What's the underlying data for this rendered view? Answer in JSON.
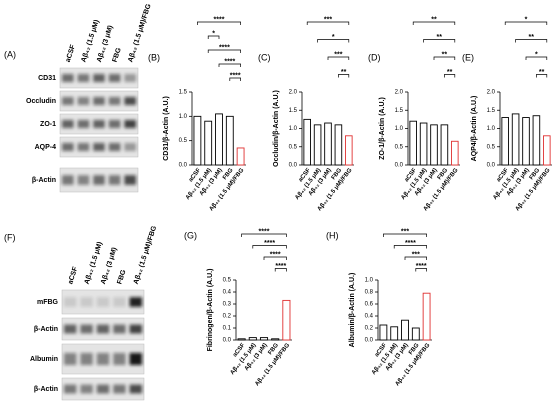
{
  "blots": [
    {
      "panel": "(A)",
      "lanes": [
        "aCSF",
        "Aβ₄₂ (1.5 μM)",
        "Aβ₄₂ (3 μM)",
        "FBG",
        "Aβ₄₂ (1.5 μM)/FBG"
      ],
      "rows": [
        "CD31",
        "Occludin",
        "ZO-1",
        "AQP-4",
        "β-Actin"
      ]
    },
    {
      "panel": "(F)",
      "lanes": [
        "aCSF",
        "Aβ₄₂ (1.5 μM)",
        "Aβ₄₂ (3 μM)",
        "FBG",
        "Aβ₄₂ (1.5 μM)/FBG"
      ],
      "rows": [
        "mFBG",
        "β-Actin",
        "Albumin",
        "β-Actin"
      ]
    }
  ],
  "chart_data": [
    {
      "type": "bar",
      "panel": "(B)",
      "ylabel": "CD31/β-Actin (A.U.)",
      "categories": [
        "aCSF",
        "Aβ₄₂ (1.5 μM)",
        "Aβ₄₂ (3 μM)",
        "FBG",
        "Aβ₄₂ (1.5 μM)/FBG"
      ],
      "values": [
        1.0,
        0.9,
        1.05,
        1.0,
        0.35
      ],
      "edge_colors": [
        "#000000",
        "#000000",
        "#000000",
        "#000000",
        "#e03030"
      ],
      "ylim": [
        0,
        1.5
      ],
      "yticks": [
        {
          "value": 0,
          "label": "0.0"
        },
        {
          "value": 0.5,
          "label": "0.5"
        },
        {
          "value": 1,
          "label": "1.0"
        },
        {
          "value": 1.5,
          "label": "1.5"
        }
      ],
      "comparisons": [
        {
          "label": "****",
          "between": [
            0,
            4
          ]
        },
        {
          "label": "*",
          "between": [
            1,
            2
          ]
        },
        {
          "label": "****",
          "between": [
            1,
            4
          ]
        },
        {
          "label": "****",
          "between": [
            2,
            4
          ]
        },
        {
          "label": "****",
          "between": [
            3,
            4
          ]
        }
      ]
    },
    {
      "type": "bar",
      "panel": "(C)",
      "ylabel": "Occludin/β-Actin (A.U.)",
      "categories": [
        "aCSF",
        "Aβ₄₂ (1.5 μM)",
        "Aβ₄₂ (3 μM)",
        "FBG",
        "Aβ₄₂ (1.5 μM)/FBG"
      ],
      "values": [
        1.25,
        1.1,
        1.15,
        1.1,
        0.8
      ],
      "edge_colors": [
        "#000000",
        "#000000",
        "#000000",
        "#000000",
        "#e03030"
      ],
      "ylim": [
        0,
        2
      ],
      "yticks": [
        {
          "value": 0,
          "label": "0.0"
        },
        {
          "value": 0.5,
          "label": "0.5"
        },
        {
          "value": 1,
          "label": "1.0"
        },
        {
          "value": 1.5,
          "label": "1.5"
        },
        {
          "value": 2,
          "label": "2.0"
        }
      ],
      "comparisons": [
        {
          "label": "***",
          "between": [
            0,
            4
          ]
        },
        {
          "label": "*",
          "between": [
            1,
            4
          ]
        },
        {
          "label": "***",
          "between": [
            2,
            4
          ]
        },
        {
          "label": "**",
          "between": [
            3,
            4
          ]
        }
      ]
    },
    {
      "type": "bar",
      "panel": "(D)",
      "ylabel": "ZO-1/β-Actin (A.U.)",
      "categories": [
        "aCSF",
        "Aβ₄₂ (1.5 μM)",
        "Aβ₄₂ (3 μM)",
        "FBG",
        "Aβ₄₂ (1.5 μM)/FBG"
      ],
      "values": [
        1.2,
        1.15,
        1.1,
        1.1,
        0.65
      ],
      "edge_colors": [
        "#000000",
        "#000000",
        "#000000",
        "#000000",
        "#e03030"
      ],
      "ylim": [
        0,
        2
      ],
      "yticks": [
        {
          "value": 0,
          "label": "0.0"
        },
        {
          "value": 0.5,
          "label": "0.5"
        },
        {
          "value": 1,
          "label": "1.0"
        },
        {
          "value": 1.5,
          "label": "1.5"
        },
        {
          "value": 2,
          "label": "2.0"
        }
      ],
      "comparisons": [
        {
          "label": "**",
          "between": [
            0,
            4
          ]
        },
        {
          "label": "**",
          "between": [
            1,
            4
          ]
        },
        {
          "label": "**",
          "between": [
            2,
            4
          ]
        },
        {
          "label": "**",
          "between": [
            3,
            4
          ]
        }
      ]
    },
    {
      "type": "bar",
      "panel": "(E)",
      "ylabel": "AQP4/β-Actin (A.U.)",
      "categories": [
        "aCSF",
        "Aβ₄₂ (1.5 μM)",
        "Aβ₄₂ (3 μM)",
        "FBG",
        "Aβ₄₂ (1.5 μM)/FBG"
      ],
      "values": [
        1.3,
        1.4,
        1.3,
        1.35,
        0.8
      ],
      "edge_colors": [
        "#000000",
        "#000000",
        "#000000",
        "#000000",
        "#e03030"
      ],
      "ylim": [
        0,
        2
      ],
      "yticks": [
        {
          "value": 0,
          "label": "0.0"
        },
        {
          "value": 0.5,
          "label": "0.5"
        },
        {
          "value": 1,
          "label": "1.0"
        },
        {
          "value": 1.5,
          "label": "1.5"
        },
        {
          "value": 2,
          "label": "2.0"
        }
      ],
      "comparisons": [
        {
          "label": "*",
          "between": [
            0,
            4
          ]
        },
        {
          "label": "**",
          "between": [
            1,
            4
          ]
        },
        {
          "label": "*",
          "between": [
            2,
            4
          ]
        },
        {
          "label": "**",
          "between": [
            3,
            4
          ]
        }
      ]
    },
    {
      "type": "bar",
      "panel": "(G)",
      "ylabel": "Fibrinogen/β-Actin (A.U.)",
      "categories": [
        "aCSF",
        "Aβ₄₂ (1.5 μM)",
        "Aβ₄₂ (3 μM)",
        "FBG",
        "Aβ₄₂ (1.5 μM)/FBG"
      ],
      "values": [
        0.01,
        0.02,
        0.02,
        0.01,
        0.33
      ],
      "edge_colors": [
        "#000000",
        "#000000",
        "#000000",
        "#000000",
        "#e03030"
      ],
      "ylim": [
        0,
        0.5
      ],
      "yticks": [
        {
          "value": 0,
          "label": "0.0"
        },
        0.1,
        0.2,
        0.3,
        0.4,
        0.5
      ],
      "comparisons": [
        {
          "label": "****",
          "between": [
            0,
            4
          ]
        },
        {
          "label": "****",
          "between": [
            1,
            4
          ]
        },
        {
          "label": "****",
          "between": [
            2,
            4
          ]
        },
        {
          "label": "****",
          "between": [
            3,
            4
          ]
        }
      ]
    },
    {
      "type": "bar",
      "panel": "(H)",
      "ylabel": "Albumin/β-Actin (A.U.)",
      "categories": [
        "aCSF",
        "Aβ₄₂ (1.5 μM)",
        "Aβ₄₂ (3 μM)",
        "FBG",
        "Aβ₄₂ (1.5 μM)/FBG"
      ],
      "values": [
        0.25,
        0.22,
        0.33,
        0.2,
        0.78
      ],
      "edge_colors": [
        "#000000",
        "#000000",
        "#000000",
        "#000000",
        "#e03030"
      ],
      "ylim": [
        0,
        1
      ],
      "yticks": [
        {
          "value": 0,
          "label": "0.0"
        },
        0.2,
        0.4,
        0.6,
        0.8,
        {
          "value": 1,
          "label": "1.0"
        }
      ],
      "comparisons": [
        {
          "label": "***",
          "between": [
            0,
            4
          ]
        },
        {
          "label": "****",
          "between": [
            1,
            4
          ]
        },
        {
          "label": "***",
          "between": [
            2,
            4
          ]
        },
        {
          "label": "****",
          "between": [
            3,
            4
          ]
        }
      ]
    }
  ]
}
